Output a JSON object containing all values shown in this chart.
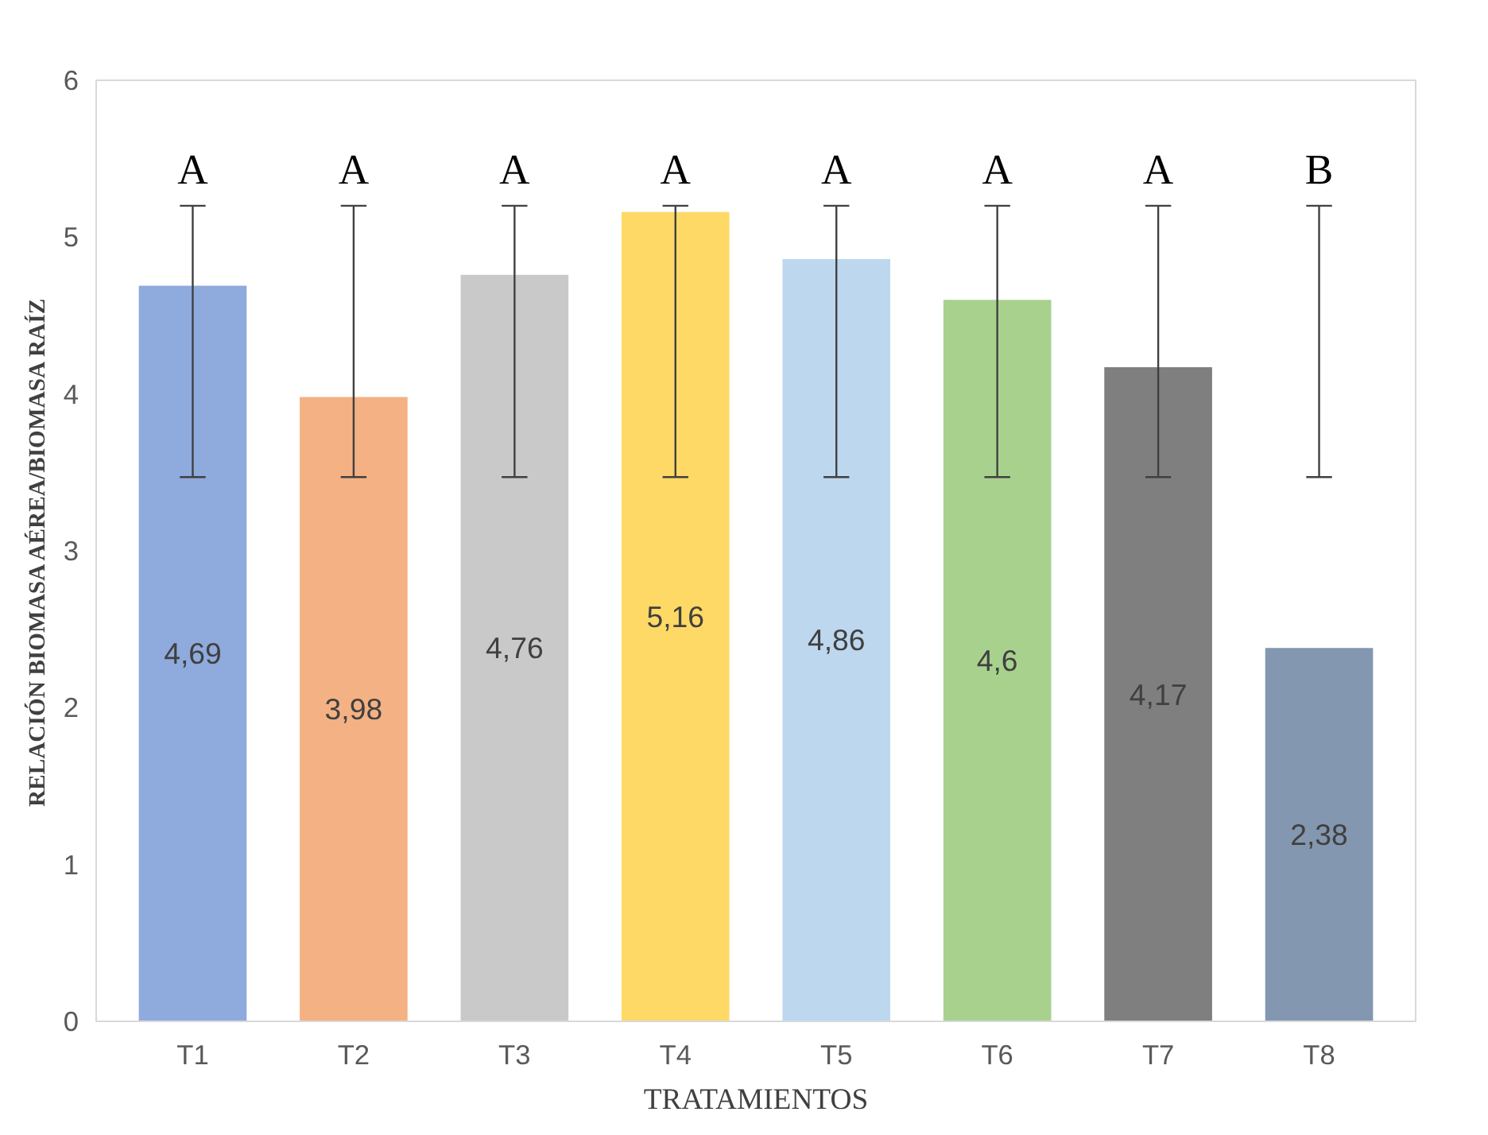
{
  "chart_data": {
    "type": "bar",
    "xlabel": "TRATAMIENTOS",
    "ylabel": "RELACIÓN BIOMASA AÉREA/BIOMASA RAÍZ",
    "categories": [
      "T1",
      "T2",
      "T3",
      "T4",
      "T5",
      "T6",
      "T7",
      "T8"
    ],
    "values": [
      4.69,
      3.98,
      4.76,
      5.16,
      4.86,
      4.6,
      4.17,
      2.38
    ],
    "colors": [
      "#8faadc",
      "#f4b183",
      "#c9c9c9",
      "#ffd966",
      "#bdd7ee",
      "#a9d18e",
      "#7f7f7f",
      "#8497b0"
    ],
    "value_labels": [
      "4,69",
      "3,98",
      "4,76",
      "5,16",
      "4,86",
      "4,6",
      "4,17",
      "2,38"
    ],
    "errors": [
      [
        3.47,
        5.2
      ],
      [
        3.47,
        5.2
      ],
      [
        3.47,
        5.2
      ],
      [
        3.47,
        5.2
      ],
      [
        3.47,
        5.2
      ],
      [
        3.47,
        5.2
      ],
      [
        3.47,
        5.2
      ],
      [
        3.47,
        5.2
      ]
    ],
    "annotations": [
      "A",
      "A",
      "A",
      "A",
      "A",
      "A",
      "A",
      "B"
    ],
    "ylim": [
      0,
      6
    ],
    "yticks": [
      0,
      1,
      2,
      3,
      4,
      5,
      6
    ],
    "grid": false
  }
}
